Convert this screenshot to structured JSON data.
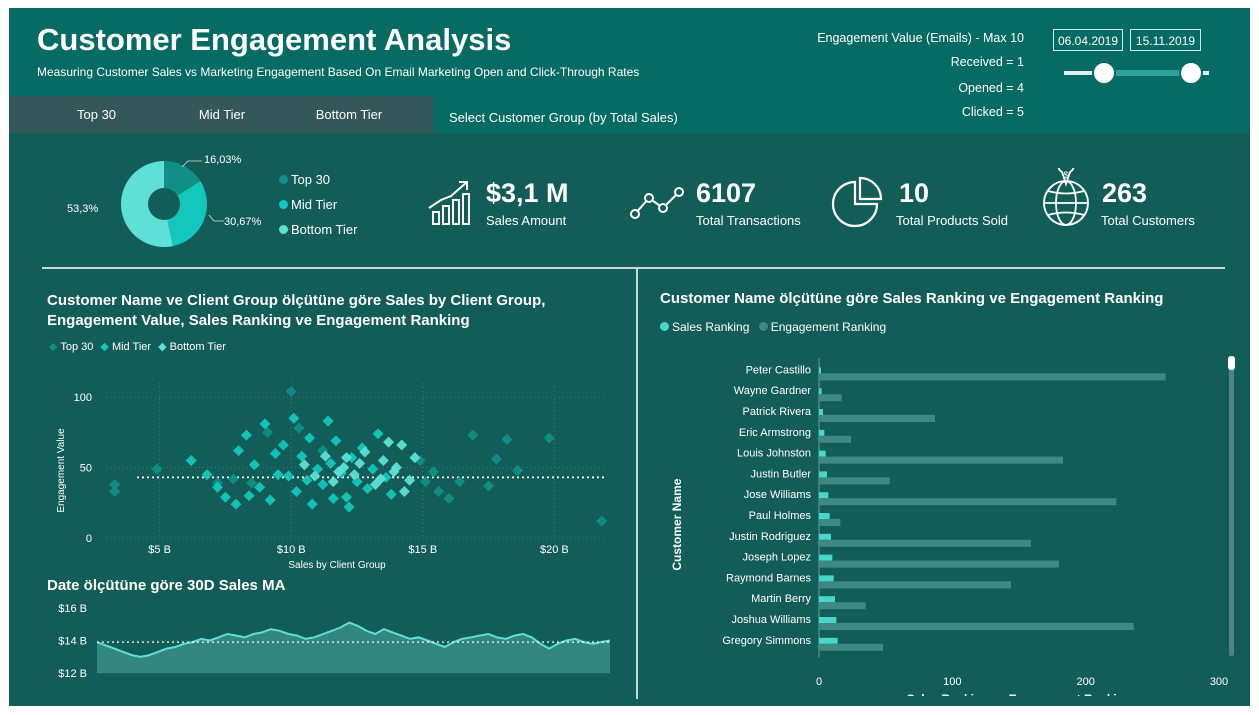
{
  "header": {
    "title": "Customer Engagement Analysis",
    "subtitle": "Measuring Customer Sales vs Marketing Engagement Based On Email Marketing Open and Click-Through Rates"
  },
  "tabs": [
    {
      "label": "Top 30"
    },
    {
      "label": "Mid Tier"
    },
    {
      "label": "Bottom Tier"
    }
  ],
  "tab_caption": "Select Customer Group (by Total Sales)",
  "engagement": {
    "title": "Engagement Value (Emails) - Max 10",
    "received": "Received = 1",
    "opened": "Opened = 4",
    "clicked": "Clicked = 5"
  },
  "date_range": {
    "start": "06.04.2019",
    "end": "15.11.2019",
    "slider_start_fraction": 0.27,
    "slider_end_fraction": 0.87
  },
  "kpis": [
    {
      "icon": "bar-growth-icon",
      "value": "$3,1 M",
      "label": "Sales Amount"
    },
    {
      "icon": "line-trend-icon",
      "value": "6107",
      "label": "Total Transactions"
    },
    {
      "icon": "pie-chart-icon",
      "value": "10",
      "label": "Total Products Sold"
    },
    {
      "icon": "globe-dollar-icon",
      "value": "263",
      "label": "Total Customers"
    }
  ],
  "colors": {
    "top30": "#118f86",
    "mid": "#14c7bd",
    "bottom": "#5ee0d6",
    "background": "#125d58",
    "header": "#056b63",
    "bar_sales": "#48d6cc",
    "bar_engagement": "#3d8a83"
  },
  "chart_data": [
    {
      "type": "pie",
      "labels": [
        "Top 30",
        "Mid Tier",
        "Bottom Tier"
      ],
      "values": [
        16.03,
        30.67,
        53.3
      ],
      "slice_labels": [
        "16,03%",
        "30,67%",
        "53,3%"
      ],
      "donut": true,
      "legend_position": "right"
    },
    {
      "type": "scatter",
      "title": "Customer Name ve Client Group ölçütüne göre Sales by Client Group, Engagement Value, Sales Ranking ve Engagement Ranking",
      "xlabel": "Sales by Client Group",
      "ylabel": "Engagement Value",
      "xlim": [
        3000000000,
        22000000000
      ],
      "ylim": [
        0,
        110
      ],
      "x_ticks": [
        "$5 B",
        "$10 B",
        "$15 B",
        "$20 B"
      ],
      "y_ticks": [
        "0",
        "50",
        "100"
      ],
      "legend": [
        "Top 30",
        "Mid Tier",
        "Bottom Tier"
      ],
      "legend_position": "top-left",
      "average_line": 43,
      "grid": true,
      "series": [
        {
          "name": "Top 30",
          "points": [
            [
              3300000000.0,
              33
            ],
            [
              3300000000.0,
              38
            ],
            [
              4900000000.0,
              49
            ],
            [
              7200000000.0,
              39
            ],
            [
              7800000000.0,
              42
            ],
            [
              8500000000.0,
              39
            ],
            [
              9100000000.0,
              75
            ],
            [
              10000000000.0,
              104
            ],
            [
              10300000000.0,
              78
            ],
            [
              11200000000.0,
              62
            ],
            [
              15400000000.0,
              47
            ],
            [
              15600000000.0,
              33
            ],
            [
              16000000000.0,
              28
            ],
            [
              16400000000.0,
              40
            ],
            [
              16900000000.0,
              73
            ],
            [
              17500000000.0,
              37
            ],
            [
              17800000000.0,
              56
            ],
            [
              18200000000.0,
              70
            ],
            [
              18600000000.0,
              48
            ],
            [
              19800000000.0,
              71
            ],
            [
              21800000000.0,
              12
            ],
            [
              14900000000.0,
              55
            ],
            [
              15100000000.0,
              40
            ]
          ]
        },
        {
          "name": "Mid Tier",
          "points": [
            [
              6200000000.0,
              55
            ],
            [
              6800000000.0,
              45
            ],
            [
              7200000000.0,
              36
            ],
            [
              7500000000.0,
              29
            ],
            [
              8000000000.0,
              62
            ],
            [
              8300000000.0,
              73
            ],
            [
              8600000000.0,
              52
            ],
            [
              8800000000.0,
              36
            ],
            [
              9200000000.0,
              27
            ],
            [
              9500000000.0,
              45
            ],
            [
              9700000000.0,
              66
            ],
            [
              9900000000.0,
              44
            ],
            [
              10200000000.0,
              33
            ],
            [
              10400000000.0,
              58
            ],
            [
              10600000000.0,
              41
            ],
            [
              10800000000.0,
              24
            ],
            [
              11000000000.0,
              49
            ],
            [
              11200000000.0,
              38
            ],
            [
              11500000000.0,
              53
            ],
            [
              11700000000.0,
              69
            ],
            [
              11900000000.0,
              46
            ],
            [
              12100000000.0,
              29
            ],
            [
              12300000000.0,
              57
            ],
            [
              12500000000.0,
              40
            ],
            [
              12700000000.0,
              64
            ],
            [
              12900000000.0,
              35
            ],
            [
              13100000000.0,
              49
            ],
            [
              13300000000.0,
              74
            ],
            [
              13600000000.0,
              43
            ],
            [
              13800000000.0,
              31
            ],
            [
              9000000000.0,
              81
            ],
            [
              9400000000.0,
              60
            ],
            [
              10100000000.0,
              85
            ],
            [
              11400000000.0,
              83
            ],
            [
              7900000000.0,
              24
            ],
            [
              8400000000.0,
              30
            ],
            [
              12200000000.0,
              22
            ],
            [
              10700000000.0,
              71
            ],
            [
              11600000000.0,
              28
            ]
          ]
        },
        {
          "name": "Bottom Tier",
          "points": [
            [
              10500000000.0,
              52
            ],
            [
              10900000000.0,
              44
            ],
            [
              11300000000.0,
              58
            ],
            [
              11600000000.0,
              40
            ],
            [
              12000000000.0,
              50
            ],
            [
              12400000000.0,
              45
            ],
            [
              12800000000.0,
              61
            ],
            [
              13200000000.0,
              38
            ],
            [
              13500000000.0,
              55
            ],
            [
              13900000000.0,
              47
            ],
            [
              14200000000.0,
              66
            ],
            [
              14500000000.0,
              41
            ],
            [
              14700000000.0,
              57
            ],
            [
              14300000000.0,
              33
            ],
            [
              13700000000.0,
              68
            ],
            [
              12600000000.0,
              53
            ],
            [
              11800000000.0,
              47
            ],
            [
              14000000000.0,
              50
            ],
            [
              13400000000.0,
              42
            ],
            [
              12100000000.0,
              57
            ]
          ]
        }
      ]
    },
    {
      "type": "area",
      "title": "Date ölçütüne göre 30D Sales MA",
      "y_ticks": [
        "$12 B",
        "$14 B",
        "$16 B"
      ],
      "ylim": [
        12000000000,
        16000000000
      ],
      "values": [
        13900000000.0,
        13700000000.0,
        13500000000.0,
        13300000000.0,
        13100000000.0,
        13000000000.0,
        13100000000.0,
        13300000000.0,
        13500000000.0,
        13600000000.0,
        13800000000.0,
        13900000000.0,
        14100000000.0,
        14000000000.0,
        14200000000.0,
        14400000000.0,
        14300000000.0,
        14200000000.0,
        14400000000.0,
        14500000000.0,
        14700000000.0,
        14600000000.0,
        14400000000.0,
        14300000000.0,
        14100000000.0,
        14200000000.0,
        14400000000.0,
        14600000000.0,
        14800000000.0,
        15100000000.0,
        14900000000.0,
        14600000000.0,
        14400000000.0,
        14700000000.0,
        14500000000.0,
        14300000000.0,
        14100000000.0,
        14200000000.0,
        14000000000.0,
        13800000000.0,
        13600000000.0,
        13900000000.0,
        14100000000.0,
        14200000000.0,
        14300000000.0,
        14400000000.0,
        14200000000.0,
        14100000000.0,
        14300000000.0,
        14400000000.0,
        14200000000.0,
        13800000000.0,
        13500000000.0,
        13800000000.0,
        14000000000.0,
        14100000000.0,
        13900000000.0,
        13800000000.0,
        13900000000.0,
        14000000000.0
      ],
      "average_line": 13900000000.0
    },
    {
      "type": "bar",
      "orientation": "horizontal",
      "title": "Customer Name ölçütüne göre Sales Ranking ve Engagement Ranking",
      "xlabel": "Sales Ranking ve Engagement Ranking",
      "ylabel": "Customer Name",
      "xlim": [
        0,
        300
      ],
      "x_ticks": [
        "0",
        "100",
        "200",
        "300"
      ],
      "legend_position": "top-left",
      "categories": [
        "Peter Castillo",
        "Wayne Gardner",
        "Patrick Rivera",
        "Eric Armstrong",
        "Louis Johnston",
        "Justin Butler",
        "Jose Williams",
        "Paul Holmes",
        "Justin Rodriguez",
        "Joseph Lopez",
        "Raymond Barnes",
        "Martin Berry",
        "Joshua Williams",
        "Gregory Simmons"
      ],
      "series": [
        {
          "name": "Sales Ranking",
          "values": [
            1,
            2,
            3,
            4,
            5,
            6,
            7,
            8,
            9,
            10,
            11,
            12,
            13,
            14
          ]
        },
        {
          "name": "Engagement Ranking",
          "values": [
            260,
            17,
            87,
            24,
            183,
            53,
            223,
            16,
            159,
            180,
            144,
            35,
            236,
            48
          ]
        }
      ]
    }
  ]
}
